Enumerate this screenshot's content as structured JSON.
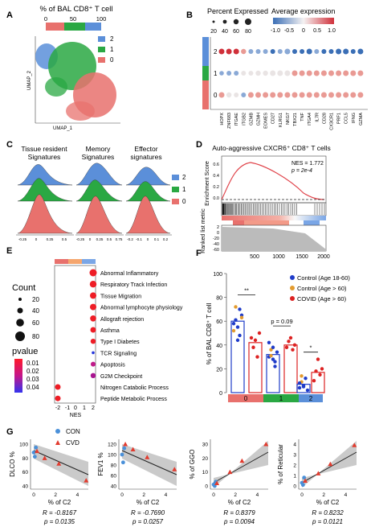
{
  "panels": {
    "A": {
      "letter": "A",
      "title": "% of BAL CD8⁺ T cell",
      "ticks": [
        "0",
        "50",
        "100"
      ],
      "clusters": [
        "2",
        "1",
        "0"
      ],
      "umap_y": "UMAP_2",
      "umap_x": "UMAP_1",
      "colors": {
        "c0": "#e8716d",
        "c1": "#2aa843",
        "c2": "#5b8fd9"
      },
      "bar_fractions": {
        "c0": 0.32,
        "c1": 0.38,
        "c2": 0.3
      }
    },
    "B": {
      "letter": "B",
      "size_title": "Percent Expressed",
      "size_ticks": [
        "20",
        "40",
        "60",
        "80"
      ],
      "color_title": "Average expression",
      "color_ticks": [
        "-1.0",
        "-0.5",
        "0",
        "0.5",
        "1.0"
      ],
      "rows": [
        "2",
        "1",
        "0"
      ],
      "genes": [
        "HOPX",
        "ZNF683",
        "ITGAE",
        "ITGB2",
        "GZMB",
        "GZMH",
        "EOMES",
        "CD27",
        "KLRG1",
        "NKG7",
        "TBX21",
        "TNF",
        "ITGA4",
        "IL7R",
        "CD28",
        "CX3CR1",
        "PRF1",
        "CCL5",
        "IFNG",
        "GZMA"
      ]
    },
    "C": {
      "letter": "C",
      "titles": [
        "Tissue resident Signatures",
        "Memory Signatures",
        "Effector signatures"
      ],
      "legend": [
        "2",
        "1",
        "0"
      ],
      "ticks1": [
        "-0.25",
        "0",
        "0.25",
        "0.5"
      ],
      "ticks2": [
        "-0.25",
        "0",
        "0.25",
        "0.5",
        "0.75"
      ],
      "ticks3": [
        "-0.2",
        "-0.1",
        "0",
        "0.1",
        "0.2"
      ]
    },
    "D": {
      "letter": "D",
      "title": "Auto-aggressive CXCR6⁺ CD8⁺ T cells",
      "nes": "NES = 1.772",
      "p": "p = 2e-4",
      "ylabel_top": "Enrichment Score",
      "ylabel_bottom": "Ranked list metric",
      "ticks_top": [
        "0.6",
        "0.4",
        "0.2",
        "0.0"
      ],
      "ticks_bottom": [
        "2",
        "0",
        "-20",
        "-40",
        "-60"
      ],
      "xticks": [
        "500",
        "1000",
        "1500",
        "2000"
      ]
    },
    "E": {
      "letter": "E",
      "count_title": "Count",
      "count_ticks": [
        "20",
        "40",
        "60",
        "80"
      ],
      "pvalue_title": "pvalue",
      "pvalue_ticks": [
        "0.01",
        "0.02",
        "0.03",
        "0.04"
      ],
      "terms": [
        "Abnormal Inflammatory",
        "Respiratory Track Infection",
        "Tissue Migration",
        "Abnormal lymphocyte physiology",
        "Allograft rejection",
        "Asthma",
        "Type I Diabetes",
        "TCR Signaling",
        "Apoptosis",
        "G2M Checkpoint",
        "Nitrogen Catabolic Process",
        "Peptide Metabolic Process"
      ],
      "xticks": [
        "-2",
        "-1",
        "0",
        "1",
        "2"
      ],
      "xlabel": "NES"
    },
    "F": {
      "letter": "F",
      "ylabel": "% of BAL CD8⁺ T cell",
      "yticks": [
        "0",
        "20",
        "40",
        "60",
        "80",
        "100"
      ],
      "legend": [
        "Control (Age 18-60)",
        "Control (Age > 60)",
        "COVID (Age > 60)"
      ],
      "sig": [
        "**",
        "p = 0.09",
        "*"
      ],
      "groups": [
        "0",
        "1",
        "2"
      ]
    },
    "G": {
      "letter": "G",
      "legend": [
        "CON",
        "CVD"
      ],
      "xlabel": "% of C2",
      "plots": [
        {
          "ylabel": "DLCO %",
          "yticks": [
            "40",
            "60",
            "80",
            "100"
          ],
          "xticks": [
            "0",
            "2",
            "4"
          ],
          "r": "R = -0.8167",
          "p": "p = 0.0135"
        },
        {
          "ylabel": "FEV1 %",
          "yticks": [
            "40",
            "60",
            "80",
            "100",
            "120"
          ],
          "xticks": [
            "0",
            "2",
            "4"
          ],
          "r": "R = -0.7690",
          "p": "p = 0.0257"
        },
        {
          "ylabel": "% of GGO",
          "yticks": [
            "0",
            "10",
            "20",
            "30"
          ],
          "xticks": [
            "0",
            "2",
            "4"
          ],
          "r": "R = 0.8379",
          "p": "p = 0.0094"
        },
        {
          "ylabel": "% of Reticular",
          "yticks": [
            "0",
            "1",
            "2",
            "3",
            "4"
          ],
          "xticks": [
            "0",
            "2",
            "4"
          ],
          "r": "R = 0.8232",
          "p": "p = 0.0121"
        }
      ]
    }
  }
}
